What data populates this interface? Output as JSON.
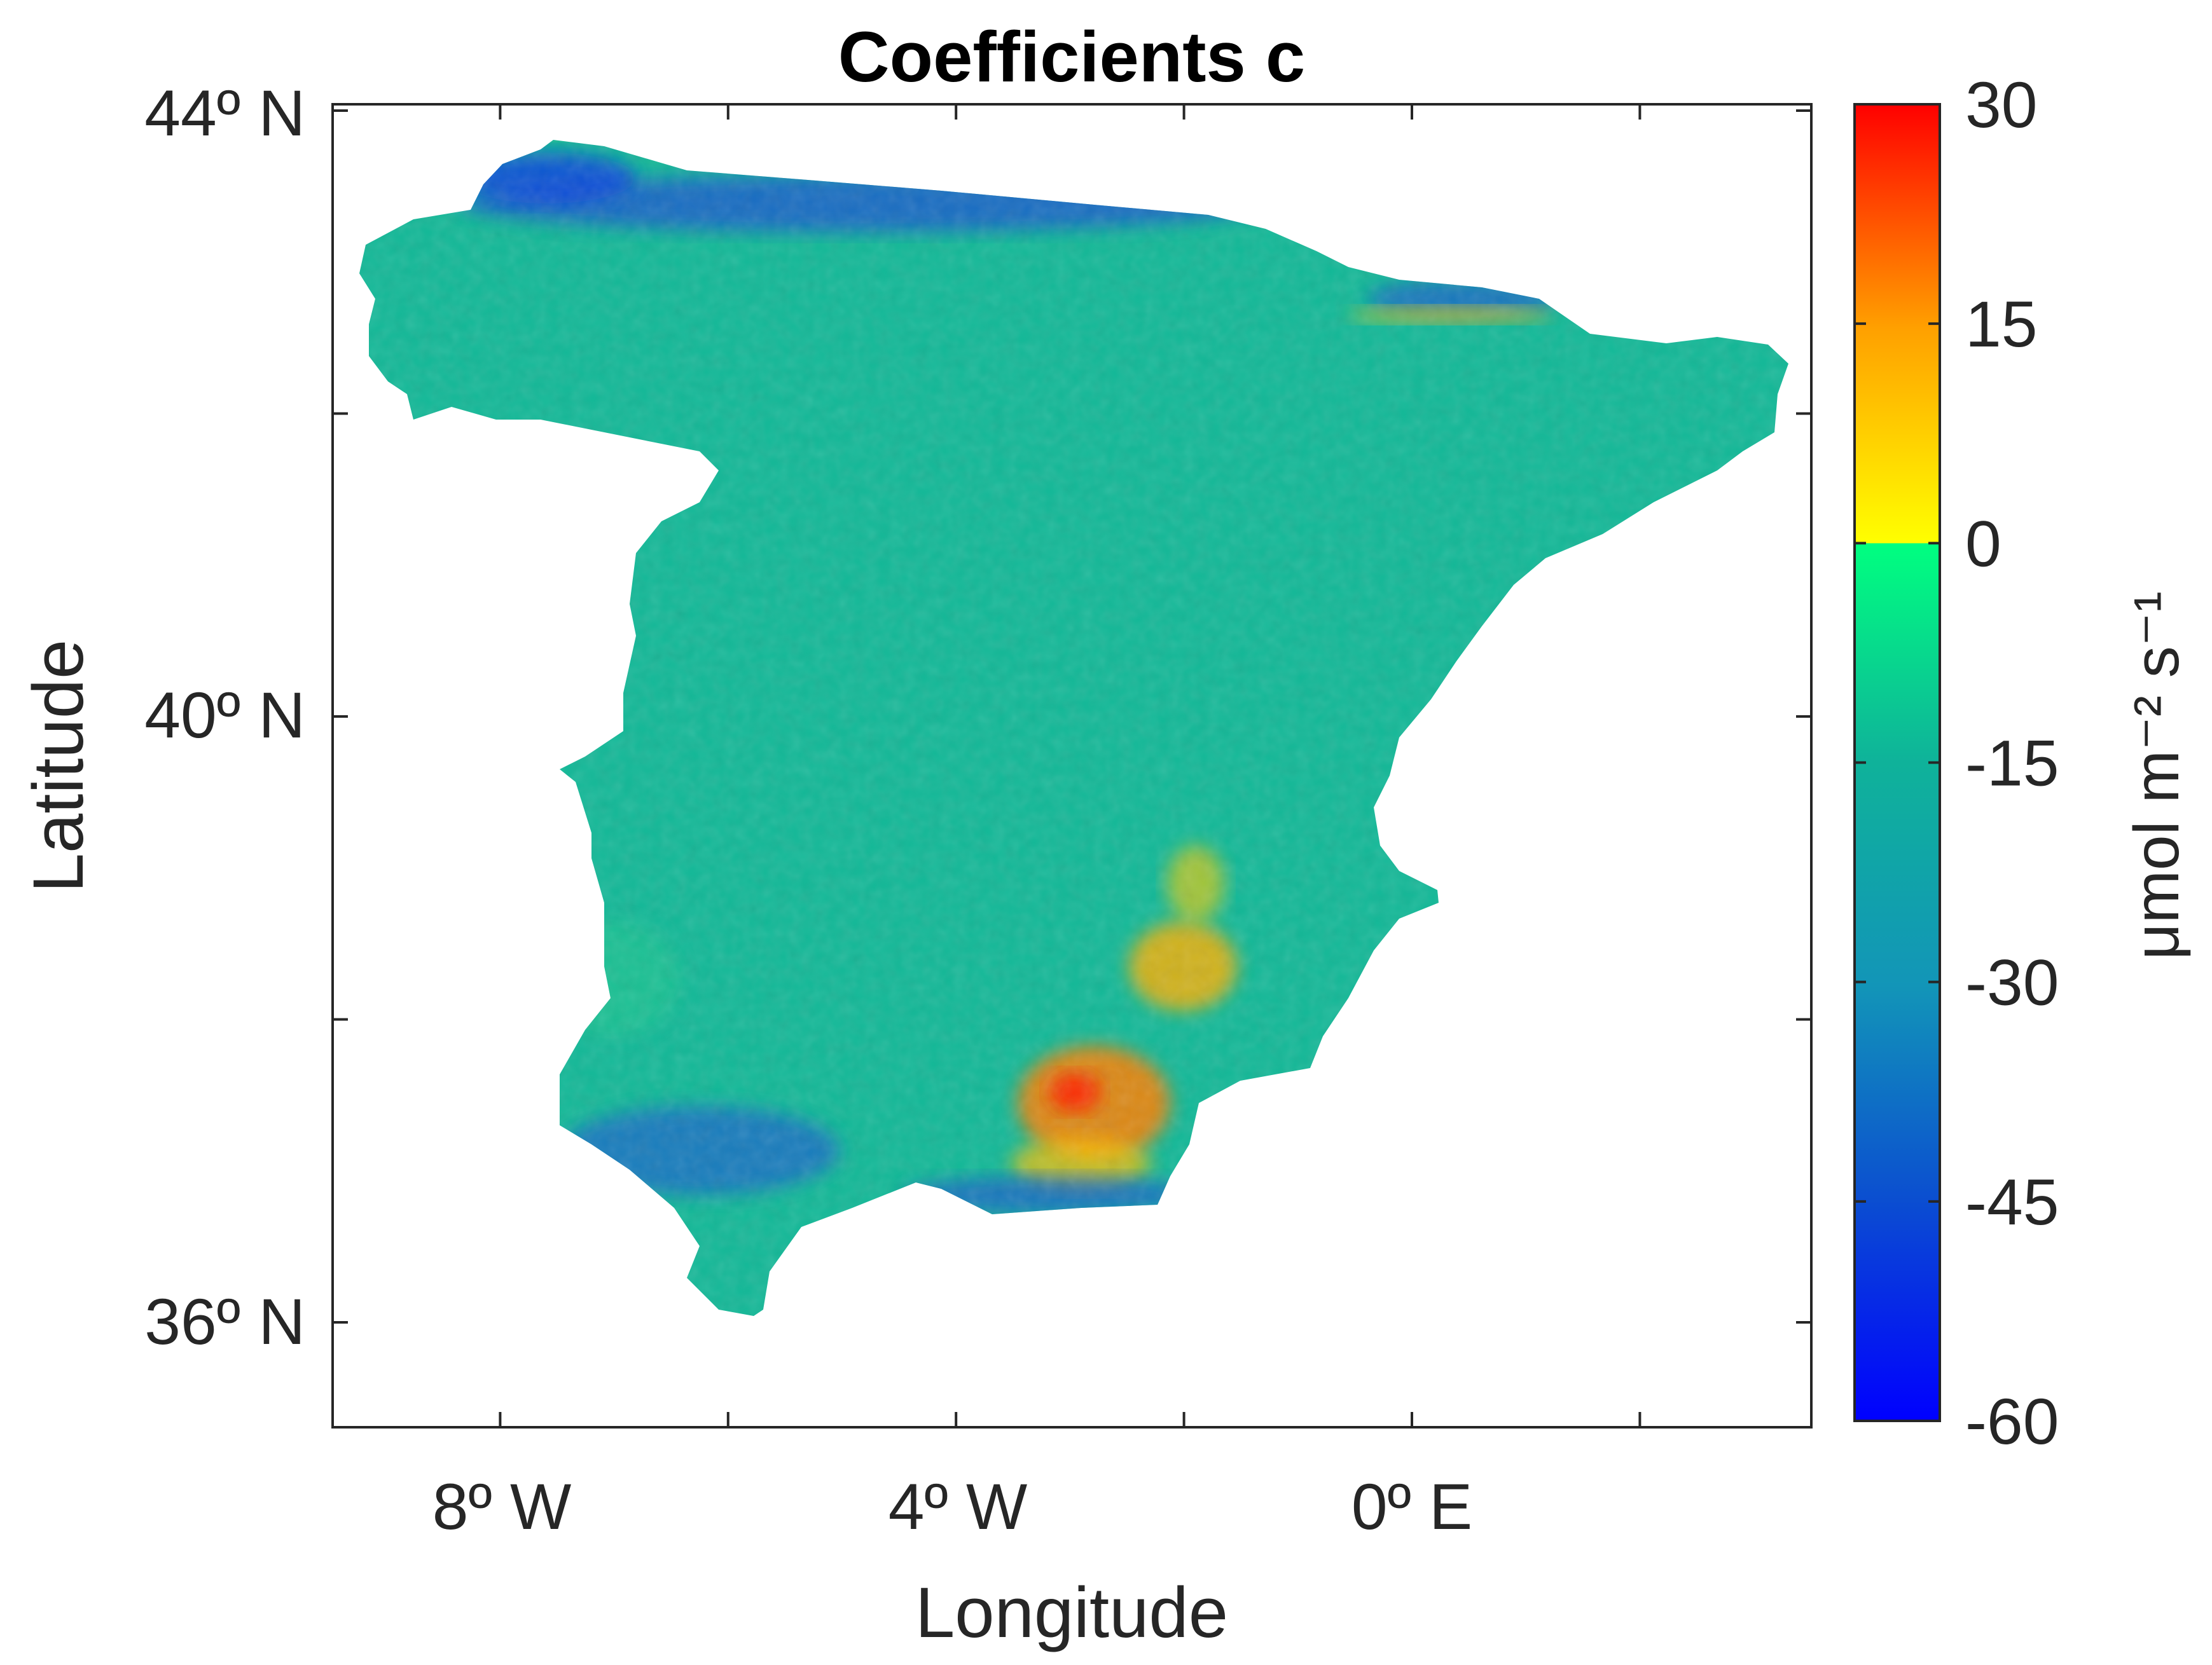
{
  "chart": {
    "title": "Coefficients c",
    "xlabel": "Longitude",
    "ylabel": "Latitude",
    "x_ticks": [
      {
        "value": -8,
        "label": "8º W"
      },
      {
        "value": -4,
        "label": "4º W"
      },
      {
        "value": 0,
        "label": "0º E"
      }
    ],
    "y_ticks": [
      {
        "value": 44,
        "label": "44º N"
      },
      {
        "value": 40,
        "label": "40º N"
      },
      {
        "value": 36,
        "label": "36º N"
      }
    ],
    "colorbar": {
      "label": "μmol m⁻² s⁻¹",
      "min": -60,
      "max": 30,
      "ticks": [
        "30",
        "15",
        "0",
        "-15",
        "-30",
        "-45",
        "-60"
      ]
    },
    "colors": {
      "negative_stops": [
        "#0000ff",
        "#0b4fd0",
        "#1295b8",
        "#0fb29a",
        "#00ff80"
      ],
      "positive_stops": [
        "#ffff00",
        "#ffa000",
        "#ff0000"
      ],
      "land_base": "#12b897"
    }
  }
}
